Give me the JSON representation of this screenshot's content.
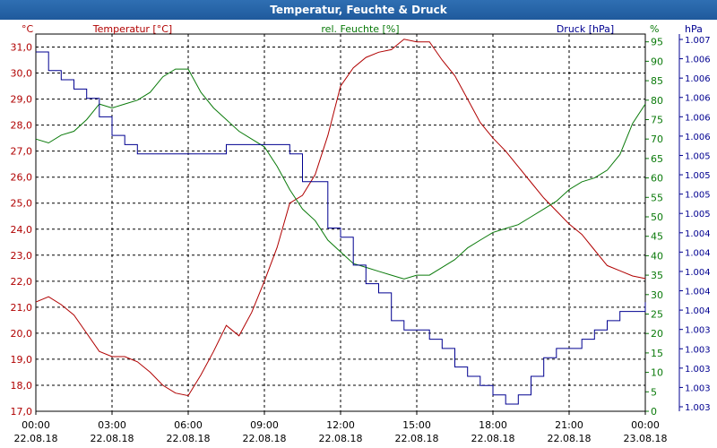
{
  "window": {
    "title": "Temperatur, Feuchte & Druck"
  },
  "chart_data": {
    "type": "line",
    "legend": {
      "temp": "Temperatur [°C]",
      "hum": "rel. Feuchte [%]",
      "press": "Druck [hPa]"
    },
    "units": {
      "temp": "°C",
      "hum": "%",
      "press": "hPa"
    },
    "colors": {
      "temp": "#b00000",
      "hum": "#0a7a0a",
      "press": "#000090",
      "grid": "#000000"
    },
    "x_ticks": [
      {
        "time": "00:00",
        "date": "22.08.18"
      },
      {
        "time": "03:00",
        "date": "22.08.18"
      },
      {
        "time": "06:00",
        "date": "22.08.18"
      },
      {
        "time": "09:00",
        "date": "22.08.18"
      },
      {
        "time": "12:00",
        "date": "22.08.18"
      },
      {
        "time": "15:00",
        "date": "22.08.18"
      },
      {
        "time": "18:00",
        "date": "22.08.18"
      },
      {
        "time": "21:00",
        "date": "22.08.18"
      },
      {
        "time": "00:00",
        "date": "23.08.18"
      }
    ],
    "xlim_hours": [
      0,
      24
    ],
    "temp_axis": {
      "ylim": [
        17.0,
        31.5
      ],
      "ticks": [
        "17,0",
        "18,0",
        "19,0",
        "20,0",
        "21,0",
        "22,0",
        "23,0",
        "24,0",
        "25,0",
        "26,0",
        "27,0",
        "28,0",
        "29,0",
        "30,0",
        "31,0"
      ]
    },
    "hum_axis": {
      "ylim": [
        0,
        97
      ],
      "ticks": [
        "0",
        "5",
        "10",
        "15",
        "20",
        "25",
        "30",
        "35",
        "40",
        "45",
        "50",
        "55",
        "60",
        "65",
        "70",
        "75",
        "80",
        "85",
        "90",
        "95"
      ]
    },
    "press_axis": {
      "ticks": [
        "1.003",
        "1.003",
        "1.003",
        "1.003",
        "1.003",
        "1.004",
        "1.004",
        "1.004",
        "1.004",
        "1.004",
        "1.005",
        "1.005",
        "1.005",
        "1.005",
        "1.006",
        "1.006",
        "1.006",
        "1.006",
        "1.006",
        "1.007"
      ]
    },
    "series": [
      {
        "name": "Temperatur [°C]",
        "axis": "temp",
        "x": [
          0,
          0.5,
          1,
          1.5,
          2,
          2.5,
          3,
          3.5,
          4,
          4.5,
          5,
          5.5,
          6,
          6.5,
          7,
          7.5,
          8,
          8.5,
          9,
          9.5,
          10,
          10.5,
          11,
          11.5,
          12,
          12.5,
          13,
          13.5,
          14,
          14.5,
          15,
          15.5,
          16,
          16.5,
          17,
          17.5,
          18,
          18.5,
          19,
          19.5,
          20,
          20.5,
          21,
          21.5,
          22,
          22.5,
          23,
          23.5,
          24
        ],
        "values": [
          21.2,
          21.4,
          21.1,
          20.7,
          20.0,
          19.3,
          19.1,
          19.1,
          18.9,
          18.5,
          18.0,
          17.7,
          17.6,
          18.4,
          19.3,
          20.3,
          19.9,
          20.8,
          22.0,
          23.3,
          25.0,
          25.3,
          26.1,
          27.6,
          29.5,
          30.2,
          30.6,
          30.8,
          30.9,
          31.3,
          31.2,
          31.2,
          30.5,
          29.9,
          29.0,
          28.1,
          27.5,
          27.0,
          26.4,
          25.8,
          25.2,
          24.7,
          24.2,
          23.8,
          23.2,
          22.6,
          22.4,
          22.2,
          22.1
        ]
      },
      {
        "name": "rel. Feuchte [%]",
        "axis": "hum",
        "x": [
          0,
          0.5,
          1,
          1.5,
          2,
          2.5,
          3,
          3.5,
          4,
          4.5,
          5,
          5.5,
          6,
          6.5,
          7,
          7.5,
          8,
          8.5,
          9,
          9.5,
          10,
          10.5,
          11,
          11.5,
          12,
          12.5,
          13,
          13.5,
          14,
          14.5,
          15,
          15.5,
          16,
          16.5,
          17,
          17.5,
          18,
          18.5,
          19,
          19.5,
          20,
          20.5,
          21,
          21.5,
          22,
          22.5,
          23,
          23.5,
          24
        ],
        "values": [
          70,
          69,
          71,
          72,
          75,
          79,
          78,
          79,
          80,
          82,
          86,
          88,
          88,
          82,
          78,
          75,
          72,
          70,
          68,
          63,
          57,
          52,
          49,
          44,
          41,
          38,
          37,
          36,
          35,
          34,
          35,
          35,
          37,
          39,
          42,
          44,
          46,
          47,
          48,
          50,
          52,
          54,
          57,
          59,
          60,
          62,
          66,
          74,
          79
        ]
      },
      {
        "name": "Druck [hPa]",
        "axis": "press",
        "x": [
          0,
          0.5,
          1,
          1.5,
          2,
          2.5,
          3,
          3.5,
          4,
          4.5,
          5,
          5.5,
          6,
          6.5,
          7,
          7.5,
          8,
          8.5,
          9,
          9.5,
          10,
          10.5,
          11,
          11.5,
          12,
          12.5,
          13,
          13.5,
          14,
          14.5,
          15,
          15.5,
          16,
          16.5,
          17,
          17.5,
          18,
          18.5,
          19,
          19.5,
          20,
          20.5,
          21,
          21.5,
          22,
          22.5,
          23,
          23.5,
          24
        ],
        "values": [
          1.0069,
          1.0067,
          1.0066,
          1.0065,
          1.0064,
          1.0062,
          1.006,
          1.0059,
          1.0058,
          1.0058,
          1.0058,
          1.0058,
          1.0058,
          1.0058,
          1.0058,
          1.0059,
          1.0059,
          1.0059,
          1.0059,
          1.0059,
          1.0058,
          1.0055,
          1.0055,
          1.005,
          1.0049,
          1.0046,
          1.0044,
          1.0043,
          1.004,
          1.0039,
          1.0039,
          1.0038,
          1.0037,
          1.0035,
          1.0034,
          1.0033,
          1.0032,
          1.0031,
          1.0032,
          1.0034,
          1.0036,
          1.0037,
          1.0037,
          1.0038,
          1.0039,
          1.004,
          1.0041,
          1.0041,
          1.0042
        ]
      }
    ]
  }
}
